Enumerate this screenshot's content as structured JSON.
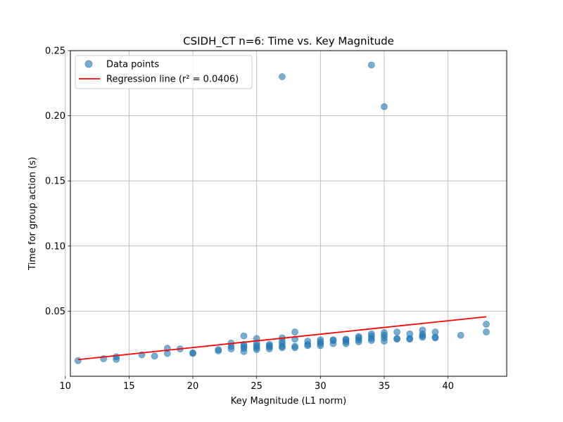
{
  "chart_data": {
    "type": "scatter",
    "title": "CSIDH_CT n=6: Time vs. Key Magnitude",
    "xlabel": "Key Magnitude (L1 norm)",
    "ylabel": "Time for group action (s)",
    "xlim": [
      10.4,
      44.6
    ],
    "ylim": [
      0.0,
      0.25
    ],
    "xticks": [
      10,
      15,
      20,
      25,
      30,
      35,
      40
    ],
    "yticks": [
      0.05,
      0.1,
      0.15,
      0.2,
      0.25
    ],
    "xtick_labels": [
      "10",
      "15",
      "20",
      "25",
      "30",
      "35",
      "40"
    ],
    "ytick_labels": [
      "0.05",
      "0.10",
      "0.15",
      "0.20",
      "0.25"
    ],
    "grid": true,
    "legend_position": "top-left",
    "series": [
      {
        "name": "Data points",
        "kind": "scatter",
        "color": "#1f77b4",
        "points": [
          [
            11,
            0.012
          ],
          [
            13,
            0.0135
          ],
          [
            14,
            0.013
          ],
          [
            14,
            0.015
          ],
          [
            16,
            0.0165
          ],
          [
            17,
            0.0155
          ],
          [
            18,
            0.0175
          ],
          [
            18,
            0.0215
          ],
          [
            19,
            0.021
          ],
          [
            20,
            0.018
          ],
          [
            20,
            0.0175
          ],
          [
            22,
            0.0195
          ],
          [
            22,
            0.0205
          ],
          [
            23,
            0.021
          ],
          [
            23,
            0.023
          ],
          [
            23,
            0.0255
          ],
          [
            24,
            0.019
          ],
          [
            24,
            0.0215
          ],
          [
            24,
            0.023
          ],
          [
            24,
            0.0245
          ],
          [
            24,
            0.031
          ],
          [
            25,
            0.0205
          ],
          [
            25,
            0.022
          ],
          [
            25,
            0.0235
          ],
          [
            25,
            0.0255
          ],
          [
            25,
            0.029
          ],
          [
            26,
            0.021
          ],
          [
            26,
            0.0225
          ],
          [
            26,
            0.0245
          ],
          [
            26,
            0.0235
          ],
          [
            27,
            0.022
          ],
          [
            27,
            0.023
          ],
          [
            27,
            0.025
          ],
          [
            27,
            0.027
          ],
          [
            27,
            0.0295
          ],
          [
            27,
            0.23
          ],
          [
            28,
            0.022
          ],
          [
            28,
            0.023
          ],
          [
            28,
            0.0285
          ],
          [
            28,
            0.034
          ],
          [
            29,
            0.0235
          ],
          [
            29,
            0.0245
          ],
          [
            29,
            0.027
          ],
          [
            30,
            0.0235
          ],
          [
            30,
            0.025
          ],
          [
            30,
            0.0265
          ],
          [
            30,
            0.028
          ],
          [
            31,
            0.025
          ],
          [
            31,
            0.0275
          ],
          [
            31,
            0.028
          ],
          [
            32,
            0.025
          ],
          [
            32,
            0.0265
          ],
          [
            32,
            0.028
          ],
          [
            32,
            0.0285
          ],
          [
            33,
            0.0265
          ],
          [
            33,
            0.028
          ],
          [
            33,
            0.0295
          ],
          [
            33,
            0.0305
          ],
          [
            34,
            0.0275
          ],
          [
            34,
            0.029
          ],
          [
            34,
            0.031
          ],
          [
            34,
            0.0325
          ],
          [
            34,
            0.239
          ],
          [
            35,
            0.027
          ],
          [
            35,
            0.0295
          ],
          [
            35,
            0.0315
          ],
          [
            35,
            0.0335
          ],
          [
            35,
            0.207
          ],
          [
            36,
            0.0285
          ],
          [
            36,
            0.029
          ],
          [
            36,
            0.034
          ],
          [
            37,
            0.0285
          ],
          [
            37,
            0.029
          ],
          [
            37,
            0.0325
          ],
          [
            38,
            0.03
          ],
          [
            38,
            0.031
          ],
          [
            38,
            0.0325
          ],
          [
            38,
            0.0355
          ],
          [
            39,
            0.0295
          ],
          [
            39,
            0.03
          ],
          [
            39,
            0.034
          ],
          [
            41,
            0.0315
          ],
          [
            43,
            0.034
          ],
          [
            43,
            0.04
          ]
        ]
      },
      {
        "name": "Regression line (r² = 0.0406)",
        "kind": "line",
        "color": "#ff0000",
        "points": [
          [
            11,
            0.0128
          ],
          [
            43,
            0.0457
          ]
        ]
      }
    ]
  }
}
